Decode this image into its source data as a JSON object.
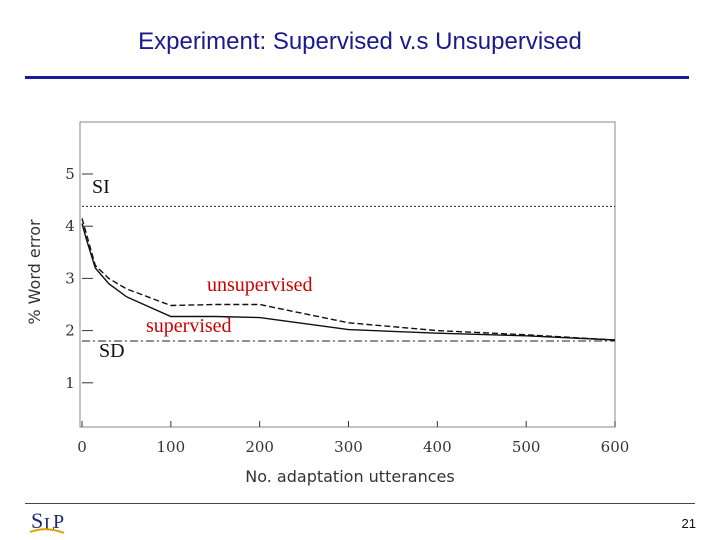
{
  "slide": {
    "title": "Experiment: Supervised v.s Unsupervised",
    "page_number": "21",
    "logo_text": "SLP"
  },
  "colors": {
    "title": "#1a1a8c",
    "annotation_red": "#cc0000",
    "line": "#111111"
  },
  "chart_data": {
    "type": "line",
    "xlabel": "No. adaptation utterances",
    "ylabel": "% Word error",
    "xlim": [
      0,
      600
    ],
    "ylim": [
      0,
      5
    ],
    "xticks": [
      0,
      100,
      200,
      300,
      400,
      500,
      600
    ],
    "yticks": [
      1,
      2,
      3,
      4,
      5
    ],
    "grid": false,
    "series": [
      {
        "name": "unsupervised",
        "style": "dashed",
        "x": [
          0,
          5,
          15,
          30,
          50,
          100,
          150,
          200,
          300,
          400,
          500,
          600
        ],
        "y": [
          4.15,
          3.85,
          3.25,
          3.0,
          2.8,
          2.48,
          2.5,
          2.5,
          2.15,
          2.0,
          1.92,
          1.82
        ]
      },
      {
        "name": "supervised",
        "style": "solid",
        "x": [
          0,
          5,
          15,
          30,
          50,
          100,
          150,
          200,
          300,
          400,
          500,
          600
        ],
        "y": [
          4.05,
          3.75,
          3.2,
          2.9,
          2.65,
          2.27,
          2.27,
          2.25,
          2.02,
          1.95,
          1.9,
          1.82
        ]
      }
    ],
    "reference_lines": [
      {
        "name": "SI",
        "style": "dashed",
        "y": 4.38
      },
      {
        "name": "SD",
        "style": "dash-dot",
        "y": 1.8
      }
    ],
    "annotations": [
      {
        "text": "SI",
        "color": "#111111"
      },
      {
        "text": "SD",
        "color": "#111111"
      },
      {
        "text": "unsupervised",
        "color": "#cc0000"
      },
      {
        "text": "supervised",
        "color": "#cc0000"
      }
    ]
  }
}
